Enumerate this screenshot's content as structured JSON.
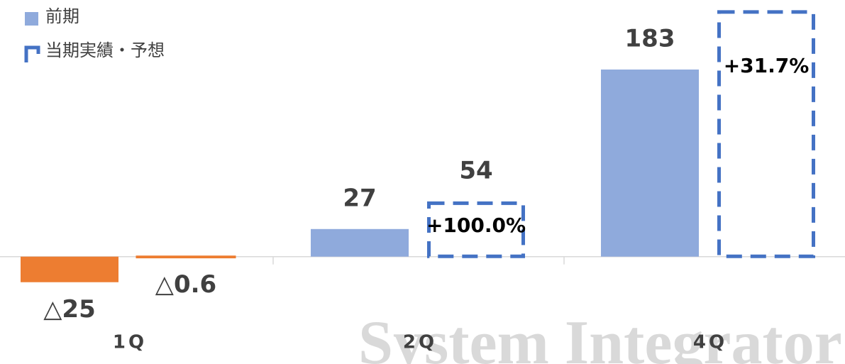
{
  "chart_data": {
    "type": "bar",
    "categories": [
      "1Q",
      "2Q",
      "4Q"
    ],
    "series": [
      {
        "name": "前期",
        "color": "#8FAADC",
        "values": [
          -25,
          27,
          183
        ],
        "value_labels": [
          "△25",
          "27",
          "183"
        ]
      },
      {
        "name": "当期実績・予想",
        "color": "#4472C4",
        "values": [
          -0.6,
          54,
          241
        ],
        "value_labels": [
          "△0.6",
          "54",
          null
        ]
      }
    ],
    "negative_color": "#ED7D31",
    "annotations": [
      null,
      "+100.0%",
      "+31.7%"
    ],
    "watermark": "System Integrator",
    "ylim": [
      -105,
      251
    ],
    "legend": "top-left"
  }
}
